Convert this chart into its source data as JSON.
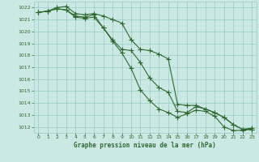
{
  "title": "Graphe pression niveau de la mer (hPa)",
  "background_color": "#cce8e4",
  "plot_bg_color": "#cce8e4",
  "grid_color": "#99ccc6",
  "line_color": "#2d6a2d",
  "xlim": [
    -0.5,
    23.5
  ],
  "ylim": [
    1011.5,
    1022.5
  ],
  "xticks": [
    0,
    1,
    2,
    3,
    4,
    5,
    6,
    7,
    8,
    9,
    10,
    11,
    12,
    13,
    14,
    15,
    16,
    17,
    18,
    19,
    20,
    21,
    22,
    23
  ],
  "yticks": [
    1012,
    1013,
    1014,
    1015,
    1016,
    1017,
    1018,
    1019,
    1020,
    1021,
    1022
  ],
  "series1": [
    1021.6,
    1021.7,
    1021.9,
    1021.8,
    1021.2,
    1021.1,
    1021.2,
    1020.3,
    1019.2,
    1018.2,
    1016.9,
    1015.1,
    1014.2,
    1013.5,
    1013.2,
    1012.8,
    1013.1,
    1013.4,
    1013.3,
    1012.9,
    1012.0,
    1011.7,
    1011.7,
    1011.8
  ],
  "series2": [
    1021.6,
    1021.7,
    1021.9,
    1021.8,
    1021.3,
    1021.2,
    1021.4,
    1020.3,
    1019.3,
    1018.5,
    1018.4,
    1017.4,
    1016.1,
    1015.3,
    1014.9,
    1013.3,
    1013.2,
    1013.7,
    1013.5,
    1013.2,
    1012.8,
    1012.2,
    1011.8,
    1011.8
  ],
  "series3": [
    1021.6,
    1021.7,
    1022.0,
    1022.1,
    1021.5,
    1021.4,
    1021.5,
    1021.3,
    1021.0,
    1020.7,
    1019.3,
    1018.5,
    1018.4,
    1018.1,
    1017.7,
    1013.9,
    1013.8,
    1013.8,
    1013.5,
    1013.2,
    1012.8,
    1012.2,
    1011.8,
    1011.9
  ]
}
